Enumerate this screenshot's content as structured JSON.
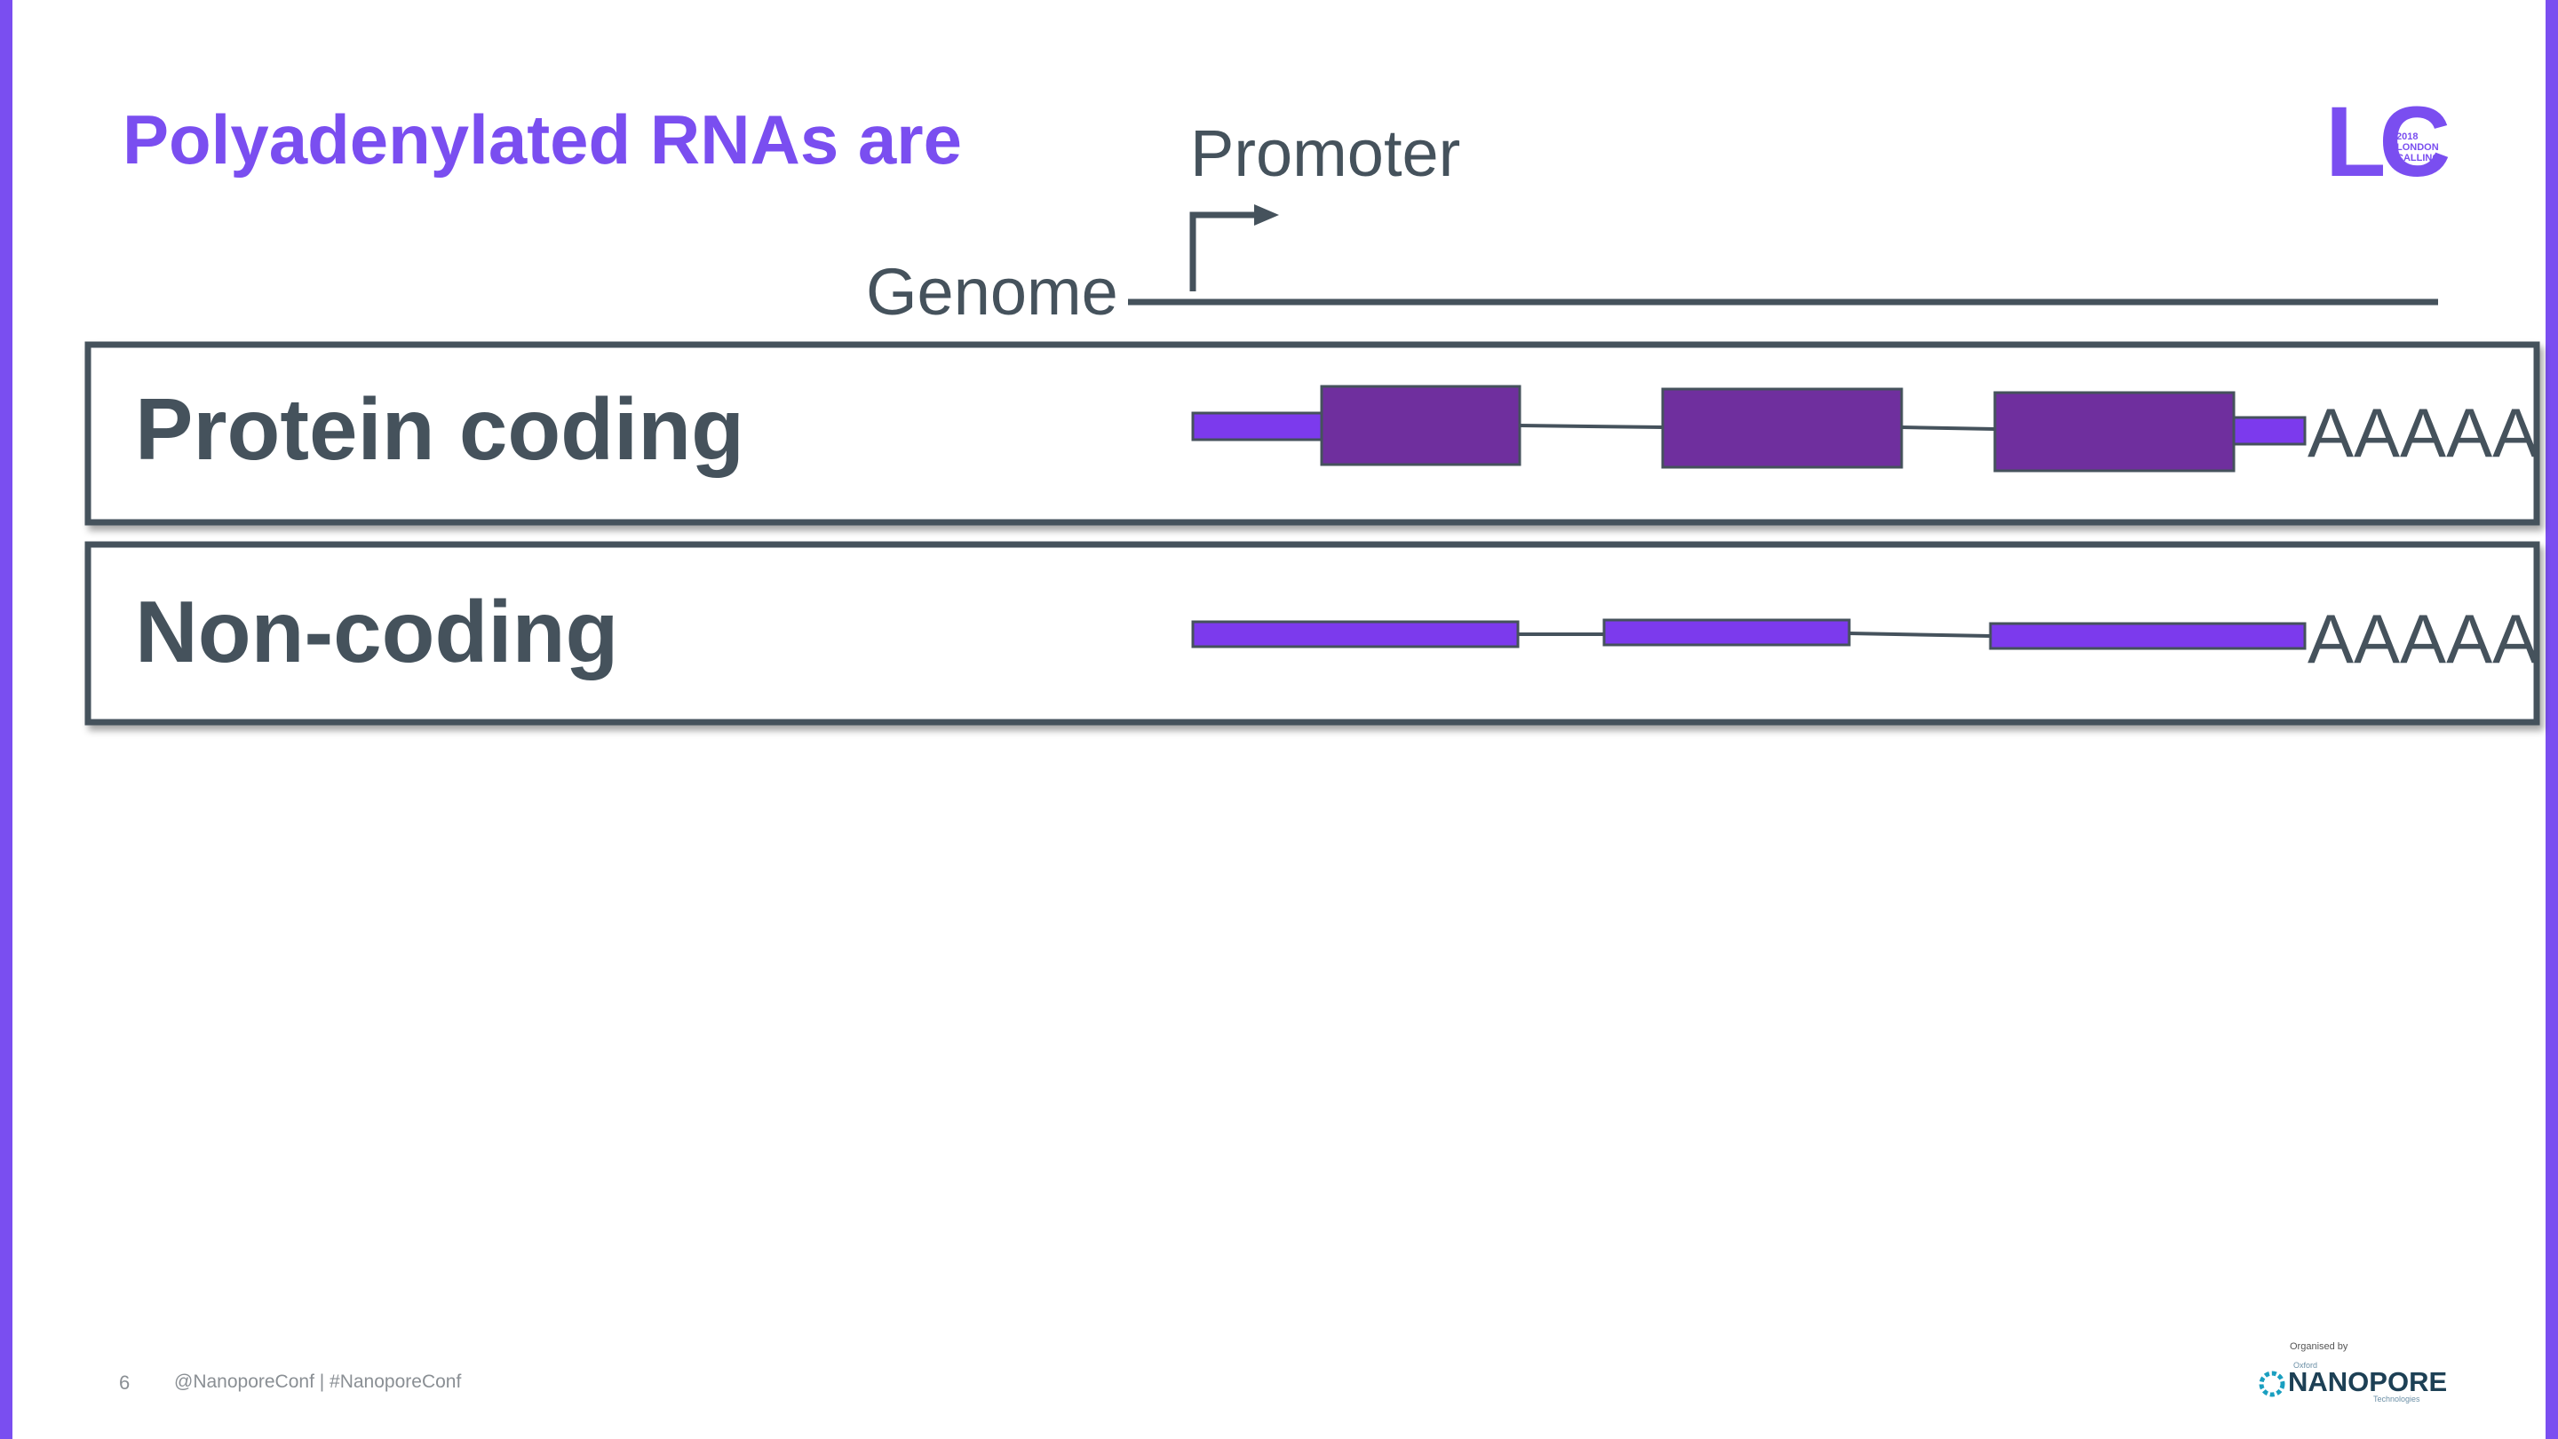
{
  "slide": {
    "title": "Polyadenylated RNAs are",
    "page_number": "6",
    "footer_tag": "@NanoporeConf | #NanoporeConf",
    "organised_by": "Organised by"
  },
  "diagram": {
    "promoter_label": "Promoter",
    "genome_label": "Genome",
    "rows": [
      {
        "label": "Protein coding",
        "tail": "AAAAA"
      },
      {
        "label": "Non-coding",
        "tail": "AAAAA"
      }
    ]
  },
  "logos": {
    "conference": {
      "mark": "LC",
      "lines": [
        "2018",
        "LONDON",
        "CALLING"
      ]
    },
    "organiser": {
      "small_top": "Oxford",
      "name": "NANOPORE",
      "small_bottom": "Technologies"
    }
  },
  "colors": {
    "accent": "#7a4ef0",
    "exon_coding": "#6f2f9e",
    "utr": "#7c3aed",
    "exon_noncoding": "#7c3aed",
    "line": "#45525c"
  }
}
